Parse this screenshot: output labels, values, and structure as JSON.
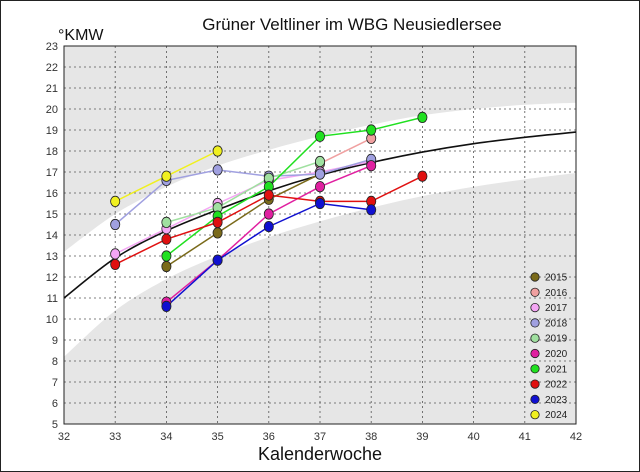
{
  "chart_data": {
    "type": "line",
    "title": "Grüner Veltliner im WBG Neusiedlersee",
    "ylabel": "°KMW",
    "xlabel": "Kalenderwoche",
    "xlim": [
      32,
      42
    ],
    "ylim": [
      5,
      23
    ],
    "x_ticks": [
      "32",
      "33",
      "34",
      "35",
      "36",
      "37",
      "38",
      "39",
      "40",
      "41",
      "42"
    ],
    "y_ticks": [
      "5",
      "6",
      "7",
      "8",
      "9",
      "10",
      "11",
      "12",
      "13",
      "14",
      "15",
      "16",
      "17",
      "18",
      "19",
      "20",
      "21",
      "22",
      "23"
    ],
    "grid": true,
    "legend_position": "bottom-right",
    "reference_curve": [
      [
        32,
        11.0
      ],
      [
        33,
        12.9
      ],
      [
        34,
        14.2
      ],
      [
        35,
        15.2
      ],
      [
        36,
        16.1
      ],
      [
        37,
        16.85
      ],
      [
        38,
        17.45
      ],
      [
        39,
        17.95
      ],
      [
        40,
        18.35
      ],
      [
        41,
        18.65
      ],
      [
        42,
        18.9
      ]
    ],
    "band_upper": [
      [
        32,
        13.2
      ],
      [
        33,
        15.0
      ],
      [
        34,
        16.3
      ],
      [
        35,
        17.3
      ],
      [
        36,
        18.05
      ],
      [
        37,
        18.7
      ],
      [
        38,
        19.25
      ],
      [
        39,
        19.7
      ],
      [
        40,
        20.0
      ],
      [
        41,
        20.2
      ],
      [
        42,
        20.3
      ]
    ],
    "band_lower": [
      [
        32,
        8.2
      ],
      [
        33,
        10.4
      ],
      [
        34,
        11.9
      ],
      [
        35,
        13.0
      ],
      [
        36,
        13.9
      ],
      [
        37,
        14.65
      ],
      [
        38,
        15.3
      ],
      [
        39,
        15.85
      ],
      [
        40,
        16.3
      ],
      [
        41,
        16.65
      ],
      [
        42,
        16.95
      ]
    ],
    "series": [
      {
        "name": "2015",
        "color": "#7a6a1a",
        "x": [
          34,
          35,
          36,
          37
        ],
        "y": [
          12.5,
          14.1,
          15.7,
          16.9
        ]
      },
      {
        "name": "2016",
        "color": "#f0a0a0",
        "x": [
          37,
          38
        ],
        "y": [
          17.4,
          18.6
        ]
      },
      {
        "name": "2017",
        "color": "#f4a6f4",
        "x": [
          33,
          34,
          35,
          36,
          37,
          38
        ],
        "y": [
          13.1,
          14.3,
          15.5,
          16.6,
          17.0,
          17.5
        ]
      },
      {
        "name": "2018",
        "color": "#a0a0e0",
        "x": [
          33,
          34,
          35,
          36,
          37,
          38
        ],
        "y": [
          14.5,
          16.6,
          17.1,
          16.8,
          16.9,
          17.6
        ]
      },
      {
        "name": "2019",
        "color": "#a0e0a0",
        "x": [
          34,
          35,
          36,
          37
        ],
        "y": [
          14.6,
          15.3,
          16.7,
          17.5
        ]
      },
      {
        "name": "2020",
        "color": "#e020a0",
        "x": [
          34,
          35,
          36,
          37,
          38
        ],
        "y": [
          10.8,
          12.8,
          15.0,
          16.3,
          17.3
        ]
      },
      {
        "name": "2021",
        "color": "#20e020",
        "x": [
          34,
          35,
          36,
          37,
          38,
          39
        ],
        "y": [
          13.0,
          14.9,
          16.3,
          18.7,
          19.0,
          19.6
        ]
      },
      {
        "name": "2022",
        "color": "#e01010",
        "x": [
          33,
          34,
          35,
          36,
          37,
          38,
          39
        ],
        "y": [
          12.6,
          13.8,
          14.6,
          15.9,
          15.6,
          15.6,
          16.8
        ]
      },
      {
        "name": "2023",
        "color": "#1010d0",
        "x": [
          34,
          35,
          36,
          37,
          38
        ],
        "y": [
          10.6,
          12.8,
          14.4,
          15.5,
          15.2
        ]
      },
      {
        "name": "2024",
        "color": "#f0f020",
        "x": [
          33,
          34,
          35
        ],
        "y": [
          15.6,
          16.8,
          18.0
        ]
      }
    ]
  }
}
